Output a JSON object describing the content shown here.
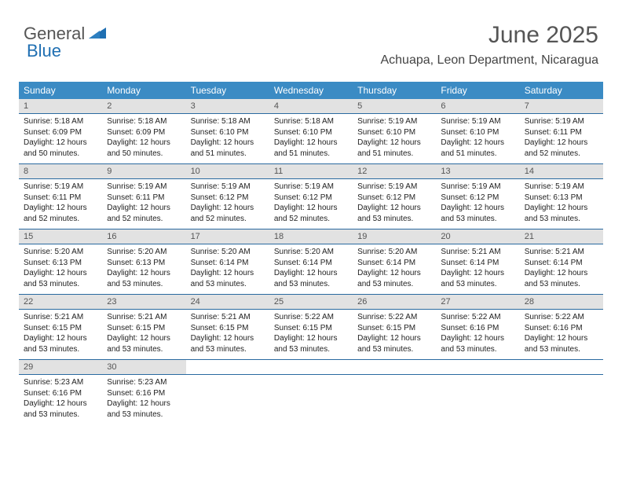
{
  "logo": {
    "text_general": "General",
    "text_blue": "Blue",
    "shape_color": "#1f6fb2"
  },
  "header": {
    "month_title": "June 2025",
    "location": "Achuapa, Leon Department, Nicaragua"
  },
  "colors": {
    "header_bg": "#3b8bc4",
    "header_text": "#ffffff",
    "daynum_bg": "#e2e2e2",
    "daynum_text": "#555555",
    "border": "#2a6aa0",
    "body_text": "#222222",
    "title_text": "#555555"
  },
  "calendar": {
    "type": "table",
    "weekdays": [
      "Sunday",
      "Monday",
      "Tuesday",
      "Wednesday",
      "Thursday",
      "Friday",
      "Saturday"
    ],
    "weeks": [
      {
        "nums": [
          "1",
          "2",
          "3",
          "4",
          "5",
          "6",
          "7"
        ],
        "cells": [
          {
            "sunrise": "Sunrise: 5:18 AM",
            "sunset": "Sunset: 6:09 PM",
            "day1": "Daylight: 12 hours",
            "day2": "and 50 minutes."
          },
          {
            "sunrise": "Sunrise: 5:18 AM",
            "sunset": "Sunset: 6:09 PM",
            "day1": "Daylight: 12 hours",
            "day2": "and 50 minutes."
          },
          {
            "sunrise": "Sunrise: 5:18 AM",
            "sunset": "Sunset: 6:10 PM",
            "day1": "Daylight: 12 hours",
            "day2": "and 51 minutes."
          },
          {
            "sunrise": "Sunrise: 5:18 AM",
            "sunset": "Sunset: 6:10 PM",
            "day1": "Daylight: 12 hours",
            "day2": "and 51 minutes."
          },
          {
            "sunrise": "Sunrise: 5:19 AM",
            "sunset": "Sunset: 6:10 PM",
            "day1": "Daylight: 12 hours",
            "day2": "and 51 minutes."
          },
          {
            "sunrise": "Sunrise: 5:19 AM",
            "sunset": "Sunset: 6:10 PM",
            "day1": "Daylight: 12 hours",
            "day2": "and 51 minutes."
          },
          {
            "sunrise": "Sunrise: 5:19 AM",
            "sunset": "Sunset: 6:11 PM",
            "day1": "Daylight: 12 hours",
            "day2": "and 52 minutes."
          }
        ]
      },
      {
        "nums": [
          "8",
          "9",
          "10",
          "11",
          "12",
          "13",
          "14"
        ],
        "cells": [
          {
            "sunrise": "Sunrise: 5:19 AM",
            "sunset": "Sunset: 6:11 PM",
            "day1": "Daylight: 12 hours",
            "day2": "and 52 minutes."
          },
          {
            "sunrise": "Sunrise: 5:19 AM",
            "sunset": "Sunset: 6:11 PM",
            "day1": "Daylight: 12 hours",
            "day2": "and 52 minutes."
          },
          {
            "sunrise": "Sunrise: 5:19 AM",
            "sunset": "Sunset: 6:12 PM",
            "day1": "Daylight: 12 hours",
            "day2": "and 52 minutes."
          },
          {
            "sunrise": "Sunrise: 5:19 AM",
            "sunset": "Sunset: 6:12 PM",
            "day1": "Daylight: 12 hours",
            "day2": "and 52 minutes."
          },
          {
            "sunrise": "Sunrise: 5:19 AM",
            "sunset": "Sunset: 6:12 PM",
            "day1": "Daylight: 12 hours",
            "day2": "and 53 minutes."
          },
          {
            "sunrise": "Sunrise: 5:19 AM",
            "sunset": "Sunset: 6:12 PM",
            "day1": "Daylight: 12 hours",
            "day2": "and 53 minutes."
          },
          {
            "sunrise": "Sunrise: 5:19 AM",
            "sunset": "Sunset: 6:13 PM",
            "day1": "Daylight: 12 hours",
            "day2": "and 53 minutes."
          }
        ]
      },
      {
        "nums": [
          "15",
          "16",
          "17",
          "18",
          "19",
          "20",
          "21"
        ],
        "cells": [
          {
            "sunrise": "Sunrise: 5:20 AM",
            "sunset": "Sunset: 6:13 PM",
            "day1": "Daylight: 12 hours",
            "day2": "and 53 minutes."
          },
          {
            "sunrise": "Sunrise: 5:20 AM",
            "sunset": "Sunset: 6:13 PM",
            "day1": "Daylight: 12 hours",
            "day2": "and 53 minutes."
          },
          {
            "sunrise": "Sunrise: 5:20 AM",
            "sunset": "Sunset: 6:14 PM",
            "day1": "Daylight: 12 hours",
            "day2": "and 53 minutes."
          },
          {
            "sunrise": "Sunrise: 5:20 AM",
            "sunset": "Sunset: 6:14 PM",
            "day1": "Daylight: 12 hours",
            "day2": "and 53 minutes."
          },
          {
            "sunrise": "Sunrise: 5:20 AM",
            "sunset": "Sunset: 6:14 PM",
            "day1": "Daylight: 12 hours",
            "day2": "and 53 minutes."
          },
          {
            "sunrise": "Sunrise: 5:21 AM",
            "sunset": "Sunset: 6:14 PM",
            "day1": "Daylight: 12 hours",
            "day2": "and 53 minutes."
          },
          {
            "sunrise": "Sunrise: 5:21 AM",
            "sunset": "Sunset: 6:14 PM",
            "day1": "Daylight: 12 hours",
            "day2": "and 53 minutes."
          }
        ]
      },
      {
        "nums": [
          "22",
          "23",
          "24",
          "25",
          "26",
          "27",
          "28"
        ],
        "cells": [
          {
            "sunrise": "Sunrise: 5:21 AM",
            "sunset": "Sunset: 6:15 PM",
            "day1": "Daylight: 12 hours",
            "day2": "and 53 minutes."
          },
          {
            "sunrise": "Sunrise: 5:21 AM",
            "sunset": "Sunset: 6:15 PM",
            "day1": "Daylight: 12 hours",
            "day2": "and 53 minutes."
          },
          {
            "sunrise": "Sunrise: 5:21 AM",
            "sunset": "Sunset: 6:15 PM",
            "day1": "Daylight: 12 hours",
            "day2": "and 53 minutes."
          },
          {
            "sunrise": "Sunrise: 5:22 AM",
            "sunset": "Sunset: 6:15 PM",
            "day1": "Daylight: 12 hours",
            "day2": "and 53 minutes."
          },
          {
            "sunrise": "Sunrise: 5:22 AM",
            "sunset": "Sunset: 6:15 PM",
            "day1": "Daylight: 12 hours",
            "day2": "and 53 minutes."
          },
          {
            "sunrise": "Sunrise: 5:22 AM",
            "sunset": "Sunset: 6:16 PM",
            "day1": "Daylight: 12 hours",
            "day2": "and 53 minutes."
          },
          {
            "sunrise": "Sunrise: 5:22 AM",
            "sunset": "Sunset: 6:16 PM",
            "day1": "Daylight: 12 hours",
            "day2": "and 53 minutes."
          }
        ]
      },
      {
        "nums": [
          "29",
          "30",
          "",
          "",
          "",
          "",
          ""
        ],
        "cells": [
          {
            "sunrise": "Sunrise: 5:23 AM",
            "sunset": "Sunset: 6:16 PM",
            "day1": "Daylight: 12 hours",
            "day2": "and 53 minutes."
          },
          {
            "sunrise": "Sunrise: 5:23 AM",
            "sunset": "Sunset: 6:16 PM",
            "day1": "Daylight: 12 hours",
            "day2": "and 53 minutes."
          },
          null,
          null,
          null,
          null,
          null
        ]
      }
    ]
  }
}
